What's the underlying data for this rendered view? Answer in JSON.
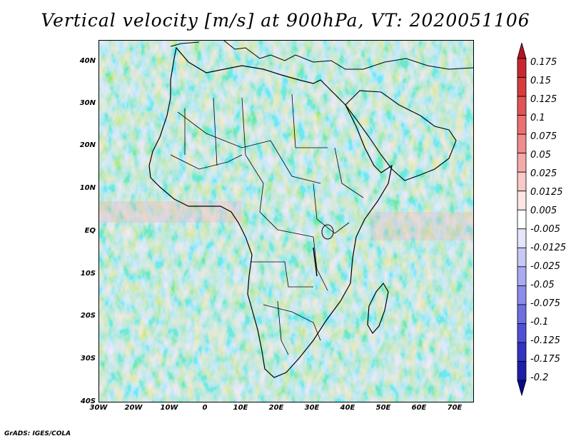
{
  "title": "Vertical velocity [m/s] at 900hPa, VT: 2020051106",
  "footer": "GrADS: IGES/COLA",
  "lat_labels": [
    "40N",
    "30N",
    "20N",
    "10N",
    "EQ",
    "10S",
    "20S",
    "30S",
    "40S"
  ],
  "lat_values": [
    40,
    30,
    20,
    10,
    0,
    -10,
    -20,
    -30,
    -40
  ],
  "lon_labels": [
    "30W",
    "20W",
    "10W",
    "0",
    "10E",
    "20E",
    "30E",
    "40E",
    "50E",
    "60E",
    "70E"
  ],
  "lon_values": [
    -30,
    -20,
    -10,
    0,
    10,
    20,
    30,
    40,
    50,
    60,
    70
  ],
  "colorbar": {
    "labels": [
      "0.175",
      "0.15",
      "0.125",
      "0.1",
      "0.075",
      "0.05",
      "0.025",
      "0.0125",
      "0.005",
      "-0.005",
      "-0.0125",
      "-0.025",
      "-0.05",
      "-0.075",
      "-0.1",
      "-0.125",
      "-0.175",
      "-0.2"
    ],
    "colors": [
      "#b4141e",
      "#c8282d",
      "#d73c3c",
      "#e25454",
      "#eb7070",
      "#f08c8c",
      "#f5aaaa",
      "#fac8c8",
      "#fde6e6",
      "#ffffff",
      "#e6e6fa",
      "#c8c8f5",
      "#aaaaf0",
      "#8c8ceb",
      "#6e6ee1",
      "#5050d7",
      "#3232c3",
      "#1e1eaa",
      "#0a0a8c"
    ]
  }
}
